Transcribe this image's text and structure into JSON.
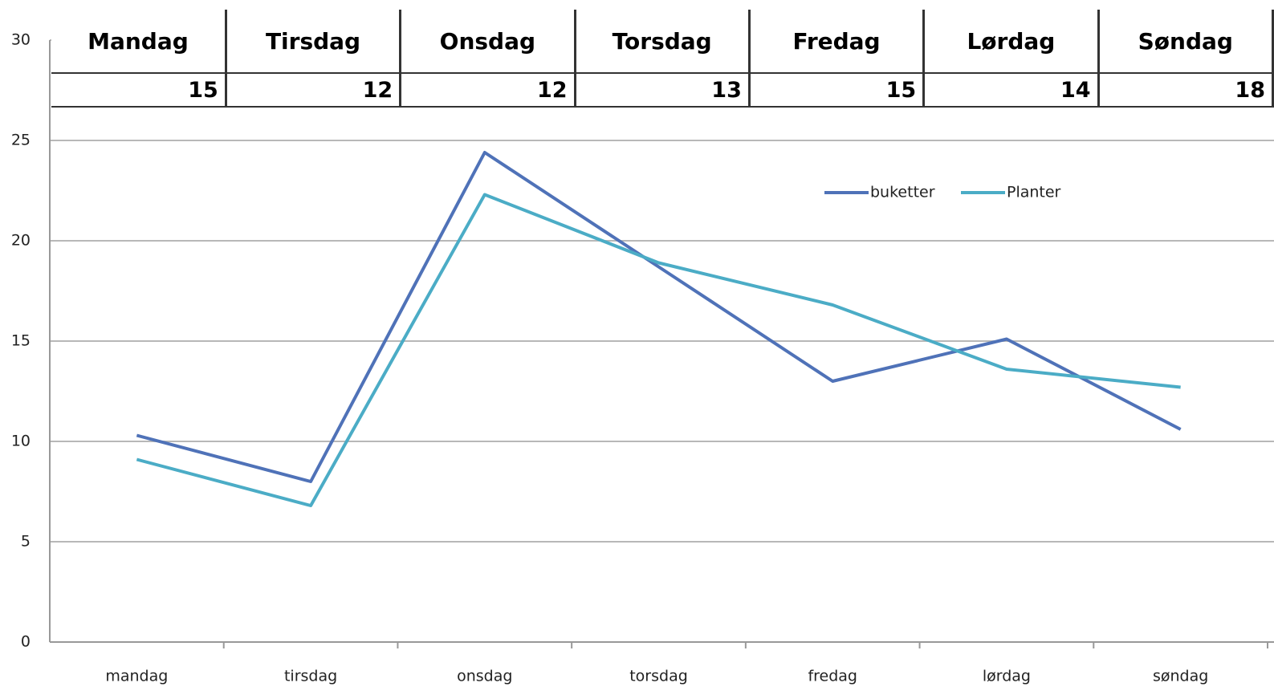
{
  "chart_data": {
    "type": "line",
    "categories": [
      "mandag",
      "tirsdag",
      "onsdag",
      "torsdag",
      "fredag",
      "lørdag",
      "søndag"
    ],
    "series": [
      {
        "name": "buketter",
        "color": "#4f72b8",
        "values": [
          10.3,
          8.0,
          24.4,
          18.7,
          13.0,
          15.1,
          10.6
        ]
      },
      {
        "name": "Planter",
        "color": "#4bacc6",
        "values": [
          9.1,
          6.8,
          22.3,
          18.9,
          16.8,
          13.6,
          12.7
        ]
      }
    ],
    "ylim": [
      0,
      30
    ],
    "yticks": [
      0,
      5,
      10,
      15,
      20,
      25,
      30
    ],
    "grid": true
  },
  "table": {
    "headers": [
      "Mandag",
      "Tirsdag",
      "Onsdag",
      "Torsdag",
      "Fredag",
      "Lørdag",
      "Søndag"
    ],
    "values": [
      "15",
      "12",
      "12",
      "13",
      "15",
      "14",
      "18"
    ]
  }
}
